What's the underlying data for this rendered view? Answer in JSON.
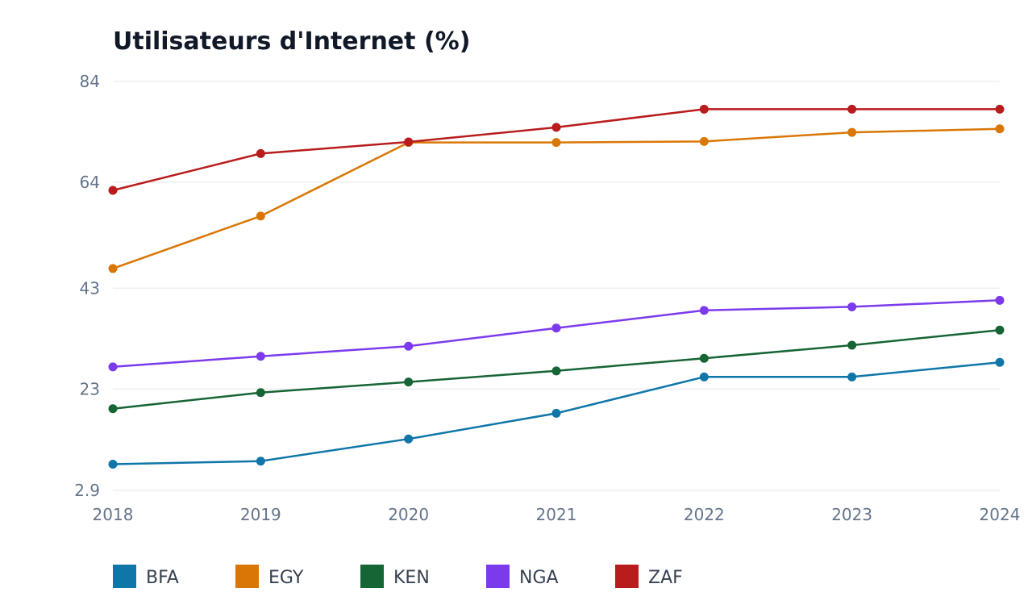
{
  "chart_data": {
    "type": "line",
    "title": "Utilisateurs d'Internet (%)",
    "xlabel": "",
    "ylabel": "",
    "x": [
      "2018",
      "2019",
      "2020",
      "2021",
      "2022",
      "2023",
      "2024"
    ],
    "yticks": [
      "84",
      "64",
      "43",
      "23",
      "2.9"
    ],
    "ytick_values": [
      84,
      64,
      43,
      23,
      2.9
    ],
    "ylim": [
      2.9,
      84
    ],
    "grid": true,
    "legend_position": "bottom-left",
    "series": [
      {
        "name": "BFA",
        "color": "#0e76a8",
        "values": [
          8.1,
          8.7,
          13.1,
          18.2,
          25.4,
          25.4,
          28.3
        ]
      },
      {
        "name": "EGY",
        "color": "#d97706",
        "values": [
          46.9,
          57.3,
          71.9,
          71.9,
          72.1,
          73.9,
          74.6
        ]
      },
      {
        "name": "KEN",
        "color": "#166534",
        "values": [
          19.1,
          22.3,
          24.4,
          26.6,
          29.1,
          31.7,
          34.7
        ]
      },
      {
        "name": "NGA",
        "color": "#7c3aed",
        "values": [
          27.4,
          29.5,
          31.5,
          35.1,
          38.6,
          39.3,
          40.6
        ]
      },
      {
        "name": "ZAF",
        "color": "#b91c1c",
        "values": [
          62.4,
          69.7,
          72.0,
          74.9,
          78.5,
          78.5,
          78.5
        ]
      }
    ]
  }
}
